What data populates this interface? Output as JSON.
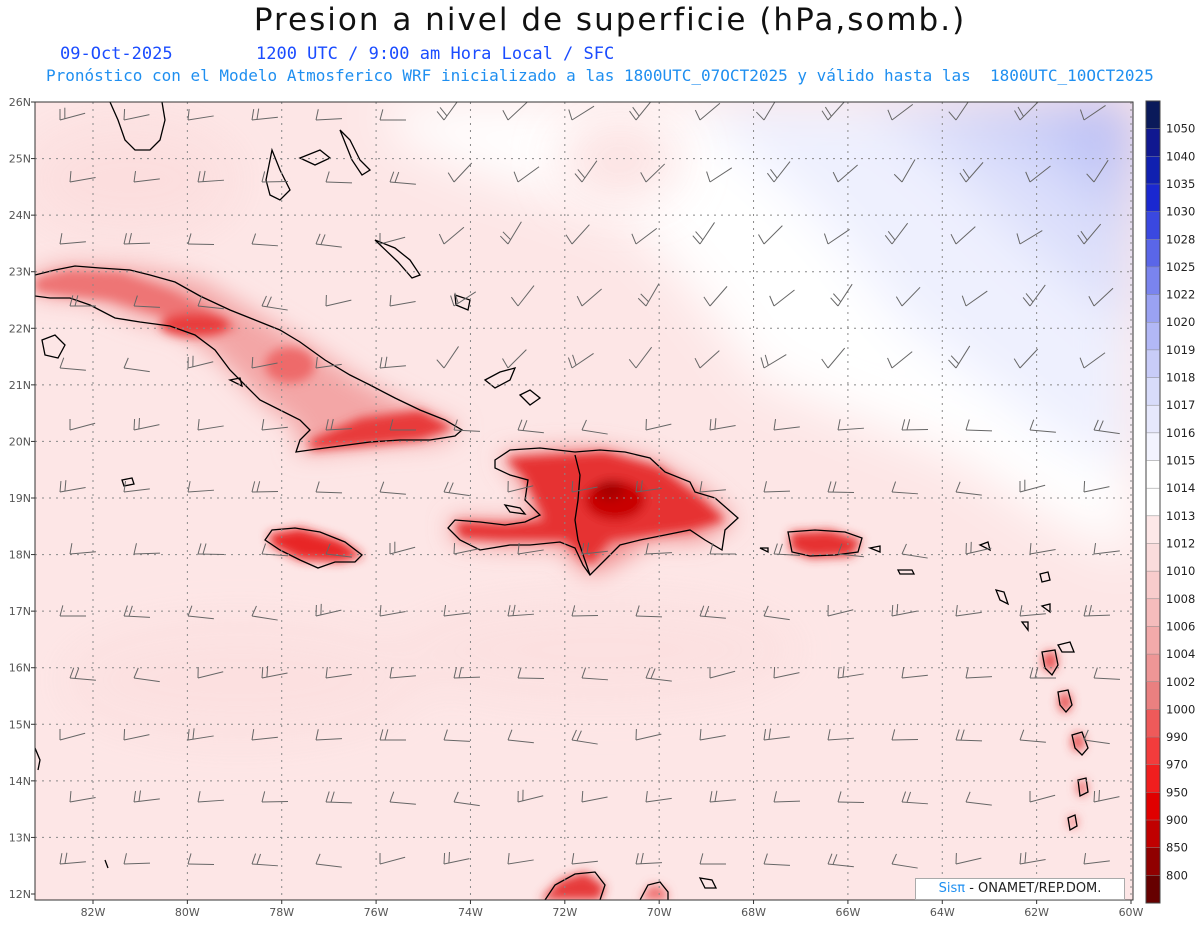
{
  "header": {
    "title": "Presion a nivel de superficie (hPa,somb.)",
    "date": "09-Oct-2025",
    "valid_time": "1200 UTC / 9:00 am Hora Local / SFC",
    "description": "Pronóstico con el Modelo Atmosferico WRF inicializado a las 1800UTC_07OCT2025 y válido hasta las  1800UTC_10OCT2025"
  },
  "axes": {
    "lon_labels": [
      "82W",
      "80W",
      "78W",
      "76W",
      "74W",
      "72W",
      "70W",
      "68W",
      "66W",
      "64W",
      "62W",
      "60W"
    ],
    "lat_labels": [
      "26N",
      "25N",
      "24N",
      "23N",
      "22N",
      "21N",
      "20N",
      "19N",
      "18N",
      "17N",
      "16N",
      "15N",
      "14N",
      "13N",
      "12N"
    ]
  },
  "colorbar": {
    "levels": [
      "1050",
      "1040",
      "1035",
      "1030",
      "1028",
      "1025",
      "1022",
      "1020",
      "1019",
      "1018",
      "1017",
      "1016",
      "1015",
      "1014",
      "1013",
      "1012",
      "1010",
      "1008",
      "1006",
      "1004",
      "1002",
      "1000",
      "990",
      "970",
      "950",
      "900",
      "850",
      "800"
    ],
    "colors": [
      "#0a1a5a",
      "#101890",
      "#1020b0",
      "#1a28d0",
      "#3a48e0",
      "#5a66e8",
      "#7a84ee",
      "#9aa2f2",
      "#b2b8f6",
      "#c8ccf8",
      "#d8dcfa",
      "#e6e8fc",
      "#f2f3fe",
      "#ffffff",
      "#ffffff",
      "#fde8e8",
      "#fadcdc",
      "#f8cccc",
      "#f5bcbc",
      "#f2aaaa",
      "#ee9696",
      "#ea8080",
      "#ee5a5a",
      "#f23c3c",
      "#f01e1e",
      "#e00000",
      "#c00000",
      "#900000",
      "#660000"
    ]
  },
  "credit": {
    "brand": "Sisπ",
    "text": " - ONAMET/REP.DOM."
  }
}
